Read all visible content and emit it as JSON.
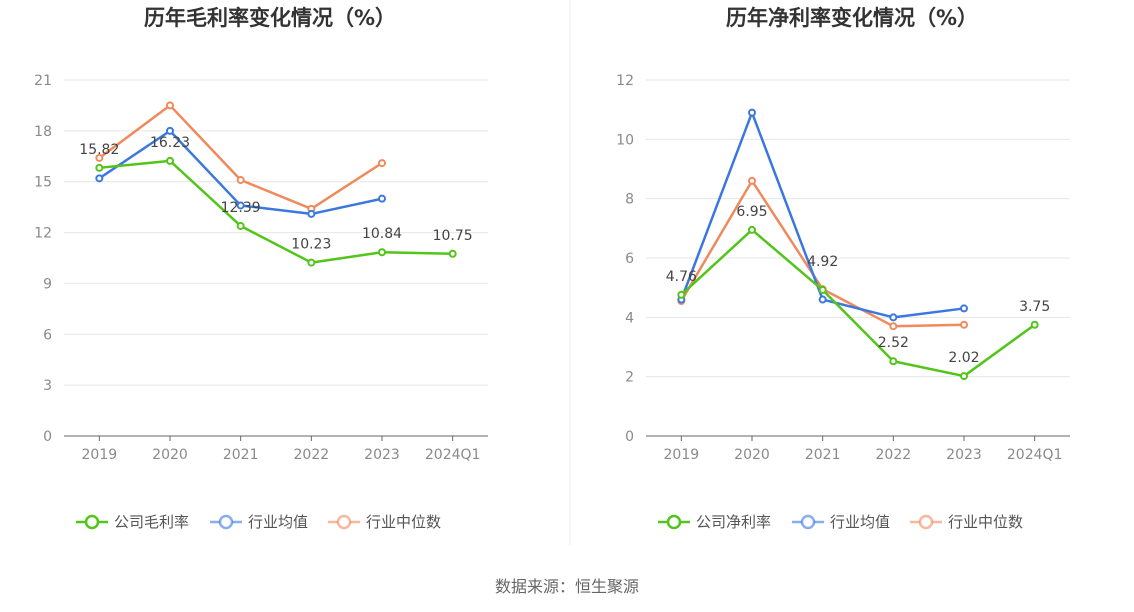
{
  "source": "数据来源：恒生聚源",
  "chart_data": [
    {
      "type": "line",
      "title": "历年毛利率变化情况（%）",
      "categories": [
        "2019",
        "2020",
        "2021",
        "2022",
        "2023",
        "2024Q1"
      ],
      "ylim": [
        0,
        21
      ],
      "yticks": [
        0,
        3,
        6,
        9,
        12,
        15,
        18,
        21
      ],
      "grid": true,
      "legend_position": "bottom",
      "series": [
        {
          "name": "公司毛利率",
          "color": "#52c41a",
          "values": [
            15.82,
            16.23,
            12.39,
            10.23,
            10.84,
            10.75
          ],
          "labels": [
            "15.82",
            "16.23",
            "12.39",
            "10.23",
            "10.84",
            "10.75"
          ]
        },
        {
          "name": "行业均值",
          "color": "#3a78e0",
          "values": [
            15.2,
            18.0,
            13.6,
            13.1,
            14.0,
            null
          ]
        },
        {
          "name": "行业中位数",
          "color": "#f08a5d",
          "values": [
            16.4,
            19.5,
            15.1,
            13.4,
            16.1,
            null
          ]
        }
      ]
    },
    {
      "type": "line",
      "title": "历年净利率变化情况（%）",
      "categories": [
        "2019",
        "2020",
        "2021",
        "2022",
        "2023",
        "2024Q1"
      ],
      "ylim": [
        0,
        12
      ],
      "yticks": [
        0,
        2,
        4,
        6,
        8,
        10,
        12
      ],
      "grid": true,
      "legend_position": "bottom",
      "series": [
        {
          "name": "公司净利率",
          "color": "#52c41a",
          "values": [
            4.76,
            6.95,
            4.92,
            2.52,
            2.02,
            3.75
          ],
          "labels": [
            "4.76",
            "6.95",
            "4.92",
            "2.52",
            "2.02",
            "3.75"
          ]
        },
        {
          "name": "行业均值",
          "color": "#3a78e0",
          "values": [
            4.6,
            10.9,
            4.6,
            4.0,
            4.3,
            null
          ]
        },
        {
          "name": "行业中位数",
          "color": "#f08a5d",
          "values": [
            4.55,
            8.6,
            4.95,
            3.7,
            3.75,
            null
          ]
        }
      ]
    }
  ]
}
